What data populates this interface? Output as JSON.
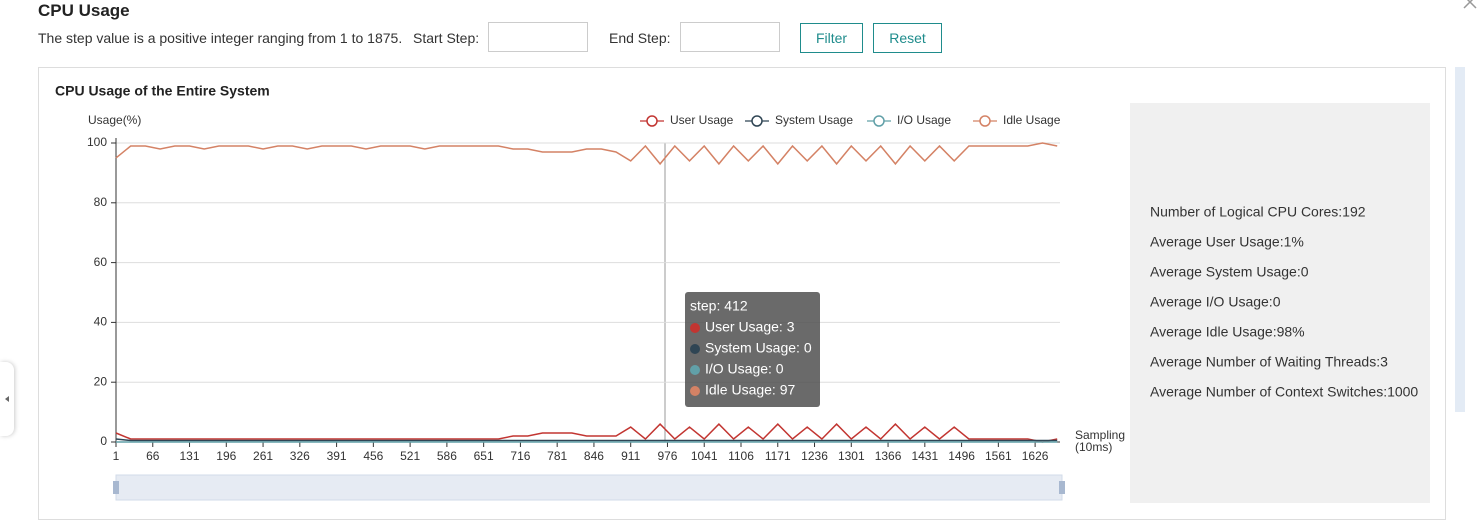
{
  "header": {
    "title": "CPU Usage",
    "description": "The step value is a positive integer ranging from 1 to 1875.",
    "start_label": "Start Step:",
    "end_label": "End Step:",
    "filter_button": "Filter",
    "reset_button": "Reset"
  },
  "chart_data": {
    "type": "line",
    "title": "CPU Usage of the Entire System",
    "y_label": "Usage(%)",
    "x_label": [
      "Sampling",
      "(10ms)"
    ],
    "xlim": [
      1,
      1670
    ],
    "xticks": [
      1,
      66,
      131,
      196,
      261,
      326,
      391,
      456,
      521,
      586,
      651,
      716,
      781,
      846,
      911,
      976,
      1041,
      1106,
      1171,
      1236,
      1301,
      1366,
      1431,
      1496,
      1561,
      1626
    ],
    "ylim": [
      0,
      100
    ],
    "yticks": [
      0,
      20,
      40,
      60,
      80,
      100
    ],
    "grid": true,
    "x": [
      1,
      27,
      53,
      79,
      105,
      131,
      157,
      183,
      209,
      235,
      261,
      287,
      313,
      339,
      365,
      391,
      417,
      443,
      469,
      495,
      521,
      547,
      573,
      599,
      625,
      651,
      677,
      703,
      729,
      755,
      781,
      807,
      833,
      859,
      885,
      911,
      937,
      963,
      989,
      1015,
      1041,
      1067,
      1093,
      1119,
      1145,
      1171,
      1197,
      1223,
      1249,
      1275,
      1301,
      1327,
      1353,
      1379,
      1405,
      1431,
      1457,
      1483,
      1509,
      1535,
      1561,
      1587,
      1613,
      1639,
      1665
    ],
    "series": [
      {
        "name": "User Usage",
        "color": "#c23531",
        "values": [
          3,
          1,
          1,
          1,
          1,
          1,
          1,
          1,
          1,
          1,
          1,
          1,
          1,
          1,
          1,
          1,
          1,
          1,
          1,
          1,
          1,
          1,
          1,
          1,
          1,
          1,
          1,
          2,
          2,
          3,
          3,
          3,
          2,
          2,
          2,
          5,
          1,
          6,
          1,
          5,
          1,
          6,
          1,
          5,
          1,
          6,
          1,
          5,
          1,
          6,
          1,
          5,
          1,
          6,
          1,
          5,
          1,
          5,
          1,
          1,
          1,
          1,
          1,
          0,
          1
        ]
      },
      {
        "name": "System Usage",
        "color": "#2f4554",
        "values": [
          1,
          0.5,
          0.5,
          0.5,
          0.5,
          0.5,
          0.5,
          0.5,
          0.5,
          0.5,
          0.5,
          0.5,
          0.5,
          0.5,
          0.5,
          0.5,
          0.5,
          0.5,
          0.5,
          0.5,
          0.5,
          0.5,
          0.5,
          0.5,
          0.5,
          0.5,
          0.5,
          0.5,
          0.5,
          0.5,
          0.5,
          0.5,
          0.5,
          0.5,
          0.5,
          0.5,
          0.5,
          0.5,
          0.5,
          0.5,
          0.5,
          0.5,
          0.5,
          0.5,
          0.5,
          0.5,
          0.5,
          0.5,
          0.5,
          0.5,
          0.5,
          0.5,
          0.5,
          0.5,
          0.5,
          0.5,
          0.5,
          0.5,
          0.5,
          0.5,
          0.5,
          0.5,
          0.5,
          0.5,
          0.5
        ]
      },
      {
        "name": "I/O Usage",
        "color": "#61a0a8",
        "values": [
          0,
          0,
          0,
          0,
          0,
          0,
          0,
          0,
          0,
          0,
          0,
          0,
          0,
          0,
          0,
          0,
          0,
          0,
          0,
          0,
          0,
          0,
          0,
          0,
          0,
          0,
          0,
          0,
          0,
          0,
          0,
          0,
          0,
          0,
          0,
          0,
          0,
          0,
          0,
          0,
          0,
          0,
          0,
          0,
          0,
          0,
          0,
          0,
          0,
          0,
          0,
          0,
          0,
          0,
          0,
          0,
          0,
          0,
          0,
          0,
          0,
          0,
          0,
          0,
          0
        ]
      },
      {
        "name": "Idle Usage",
        "color": "#d48265",
        "values": [
          95,
          99,
          99,
          98,
          99,
          99,
          98,
          99,
          99,
          99,
          98,
          99,
          99,
          98,
          99,
          99,
          99,
          98,
          99,
          99,
          99,
          98,
          99,
          99,
          99,
          99,
          99,
          98,
          98,
          97,
          97,
          97,
          98,
          98,
          97,
          94,
          99,
          93,
          99,
          94,
          99,
          93,
          99,
          94,
          99,
          93,
          99,
          94,
          99,
          93,
          99,
          94,
          99,
          93,
          99,
          94,
          99,
          94,
          99,
          99,
          99,
          99,
          99,
          100,
          99
        ]
      }
    ],
    "tooltip": {
      "title": "step: 412",
      "rows": [
        "User Usage: 3",
        "System Usage: 0",
        "I/O Usage: 0",
        "Idle Usage: 97"
      ]
    }
  },
  "stats": [
    "Number of Logical CPU Cores:192",
    "Average User Usage:1%",
    "Average System Usage:0",
    "Average I/O Usage:0",
    "Average Idle Usage:98%",
    "Average Number of Waiting Threads:3",
    "Average Number of Context Switches:1000"
  ]
}
